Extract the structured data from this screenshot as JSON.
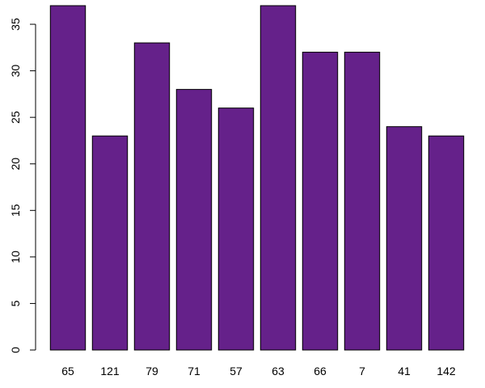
{
  "chart_data": {
    "type": "bar",
    "categories": [
      "65",
      "121",
      "79",
      "71",
      "57",
      "63",
      "66",
      "7",
      "41",
      "142"
    ],
    "values": [
      37,
      23,
      33,
      28,
      26,
      37,
      32,
      32,
      24,
      23
    ],
    "title": "",
    "xlabel": "",
    "ylabel": "",
    "ylim": [
      0,
      37
    ],
    "yticks": [
      "0",
      "5",
      "10",
      "15",
      "20",
      "25",
      "30",
      "35"
    ],
    "bar_color": "#65218A",
    "bar_border_color": "#000000",
    "grid": false,
    "legend": "none"
  }
}
